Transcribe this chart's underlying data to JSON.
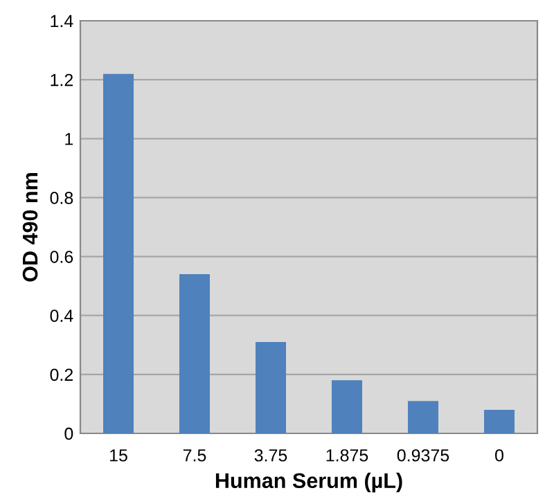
{
  "chart_data": {
    "type": "bar",
    "xlabel": "Human Serum (µL)",
    "ylabel": "OD 490 nm",
    "categories": [
      "15",
      "7.5",
      "3.75",
      "1.875",
      "0.9375",
      "0"
    ],
    "values": [
      1.22,
      0.54,
      0.31,
      0.18,
      0.11,
      0.08
    ],
    "color": "#4f81bd",
    "ylim": [
      0,
      1.4
    ],
    "yticks": [
      0,
      0.2,
      0.4,
      0.6,
      0.8,
      1,
      1.2,
      1.4
    ],
    "grid": "y"
  }
}
